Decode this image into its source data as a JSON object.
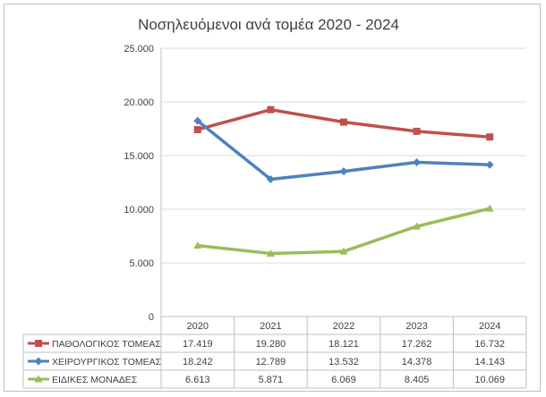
{
  "chart_data": {
    "type": "line",
    "title": "Νοσηλευόμενοι ανά τομέα 2020 - 2024",
    "categories": [
      "2020",
      "2021",
      "2022",
      "2023",
      "2024"
    ],
    "ylim": [
      0,
      25000
    ],
    "yticks": [
      "0",
      "5.000",
      "10.000",
      "15.000",
      "20.000",
      "25.000"
    ],
    "ytick_values": [
      0,
      5000,
      10000,
      15000,
      20000,
      25000
    ],
    "grid": true,
    "legend": "data-table-bottom",
    "series": [
      {
        "name": "ΠΑΘΟΛΟΓΙΚΟΣ ΤΟΜΕΑΣ",
        "values": [
          17419,
          19280,
          18121,
          17262,
          16732
        ],
        "labels": [
          "17.419",
          "19.280",
          "18.121",
          "17.262",
          "16.732"
        ],
        "color": "#c0504d",
        "marker": "square"
      },
      {
        "name": "ΧΕΙΡΟΥΡΓΙΚΟΣ ΤΟΜΕΑΣ",
        "values": [
          18242,
          12789,
          13532,
          14378,
          14143
        ],
        "labels": [
          "18.242",
          "12.789",
          "13.532",
          "14.378",
          "14.143"
        ],
        "color": "#4f81bd",
        "marker": "diamond"
      },
      {
        "name": "ΕΙΔΙΚΕΣ ΜΟΝΑΔΕΣ",
        "values": [
          6613,
          5871,
          6069,
          8405,
          10069
        ],
        "labels": [
          "6.613",
          "5.871",
          "6.069",
          "8.405",
          "10.069"
        ],
        "color": "#9bbb59",
        "marker": "triangle"
      }
    ]
  }
}
